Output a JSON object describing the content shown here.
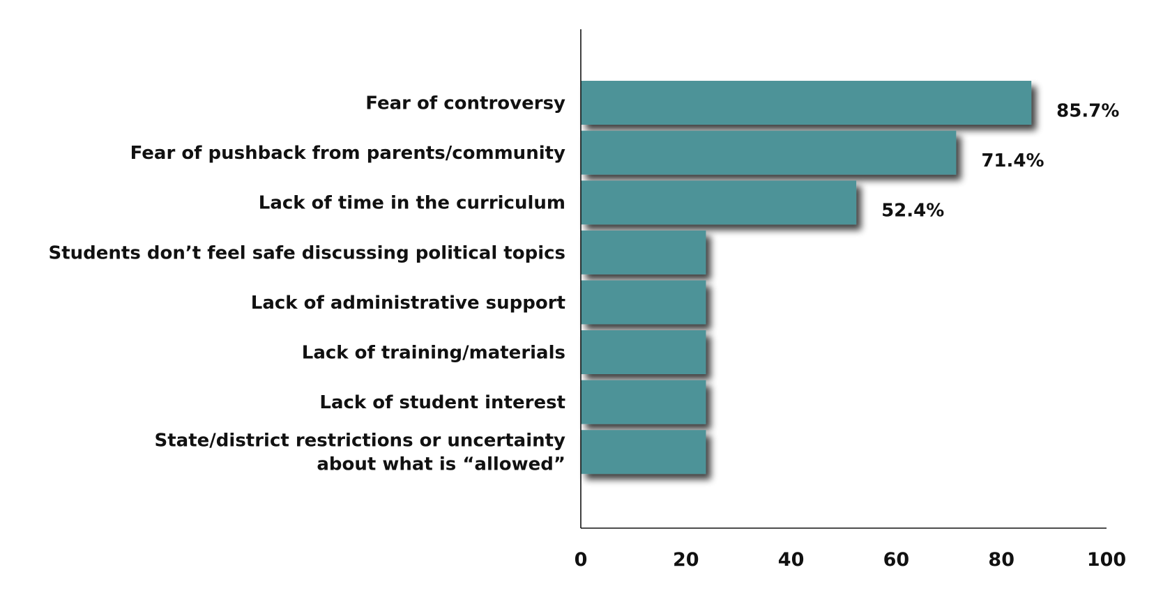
{
  "chart_data": {
    "type": "bar",
    "orientation": "horizontal",
    "title": "",
    "xlabel": "",
    "ylabel": "",
    "categories": [
      "Fear of controversy",
      "Fear of pushback from parents/community",
      "Lack of time in the curriculum",
      "Students don’t feel safe discussing political topics",
      "Lack of administrative support",
      "Lack of training/materials",
      "Lack of student interest",
      "State/district restrictions or uncertainty about what is “allowed”"
    ],
    "category_label_lines": [
      [
        "Fear of controversy"
      ],
      [
        "Fear of pushback from parents/community"
      ],
      [
        "Lack of time in the curriculum"
      ],
      [
        "Students don’t feel safe discussing political topics"
      ],
      [
        "Lack of administrative support"
      ],
      [
        "Lack of training/materials"
      ],
      [
        "Lack of student interest"
      ],
      [
        "State/district restrictions or uncertainty",
        "about what is “allowed”"
      ]
    ],
    "values": [
      85.7,
      71.4,
      52.4,
      23.8,
      23.8,
      23.8,
      23.8,
      23.8
    ],
    "value_labels": [
      "85.7%",
      "71.4%",
      "52.4%",
      "",
      "",
      "",
      "",
      ""
    ],
    "xlim": [
      0,
      100
    ],
    "xticks": [
      0,
      20,
      40,
      60,
      80,
      100
    ],
    "xtick_labels": [
      "0",
      "20",
      "40",
      "60",
      "80",
      "100"
    ],
    "grid": false,
    "legend": "none",
    "bar_color": "#4e9398",
    "shadow_color": "#555555",
    "axis_color": "#111111"
  }
}
